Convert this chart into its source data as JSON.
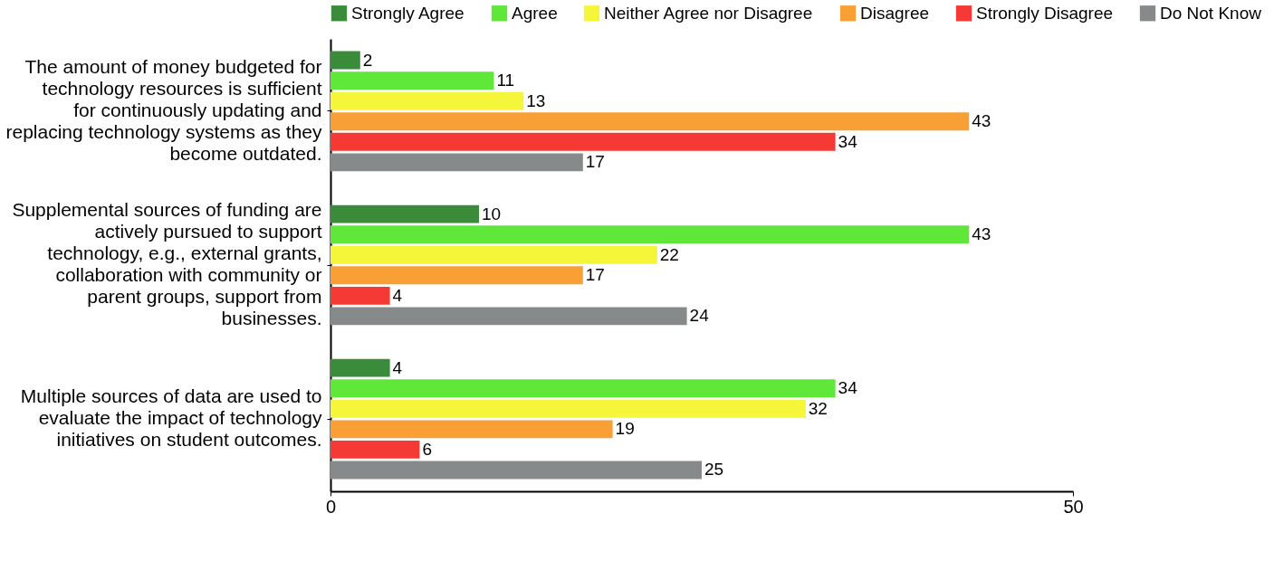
{
  "chart_data": {
    "type": "bar",
    "orientation": "horizontal",
    "categories": [
      "The amount of money budgeted for technology resources is sufficient for continuously updating and replacing technology systems as they become outdated.",
      "Supplemental sources of funding are actively pursued to support technology, e.g., external grants, collaboration with community or parent groups, support from businesses.",
      "Multiple sources of data are used to evaluate the impact of technology initiatives on student outcomes."
    ],
    "series": [
      {
        "name": "Strongly Agree",
        "color": "#3a8c3a",
        "values": [
          2,
          10,
          4
        ]
      },
      {
        "name": "Agree",
        "color": "#5fe83a",
        "values": [
          11,
          43,
          34
        ]
      },
      {
        "name": "Neither Agree nor Disagree",
        "color": "#f5f53a",
        "values": [
          13,
          22,
          32
        ]
      },
      {
        "name": "Disagree",
        "color": "#f8a035",
        "values": [
          43,
          17,
          19
        ]
      },
      {
        "name": "Strongly Disagree",
        "color": "#f53a35",
        "values": [
          34,
          4,
          6
        ]
      },
      {
        "name": "Do Not Know",
        "color": "#878a8a",
        "values": [
          17,
          24,
          25
        ]
      }
    ],
    "xlim": [
      0,
      50
    ],
    "xticks": [
      0,
      50
    ],
    "data_labels": true,
    "legend": "top",
    "grid": false
  }
}
